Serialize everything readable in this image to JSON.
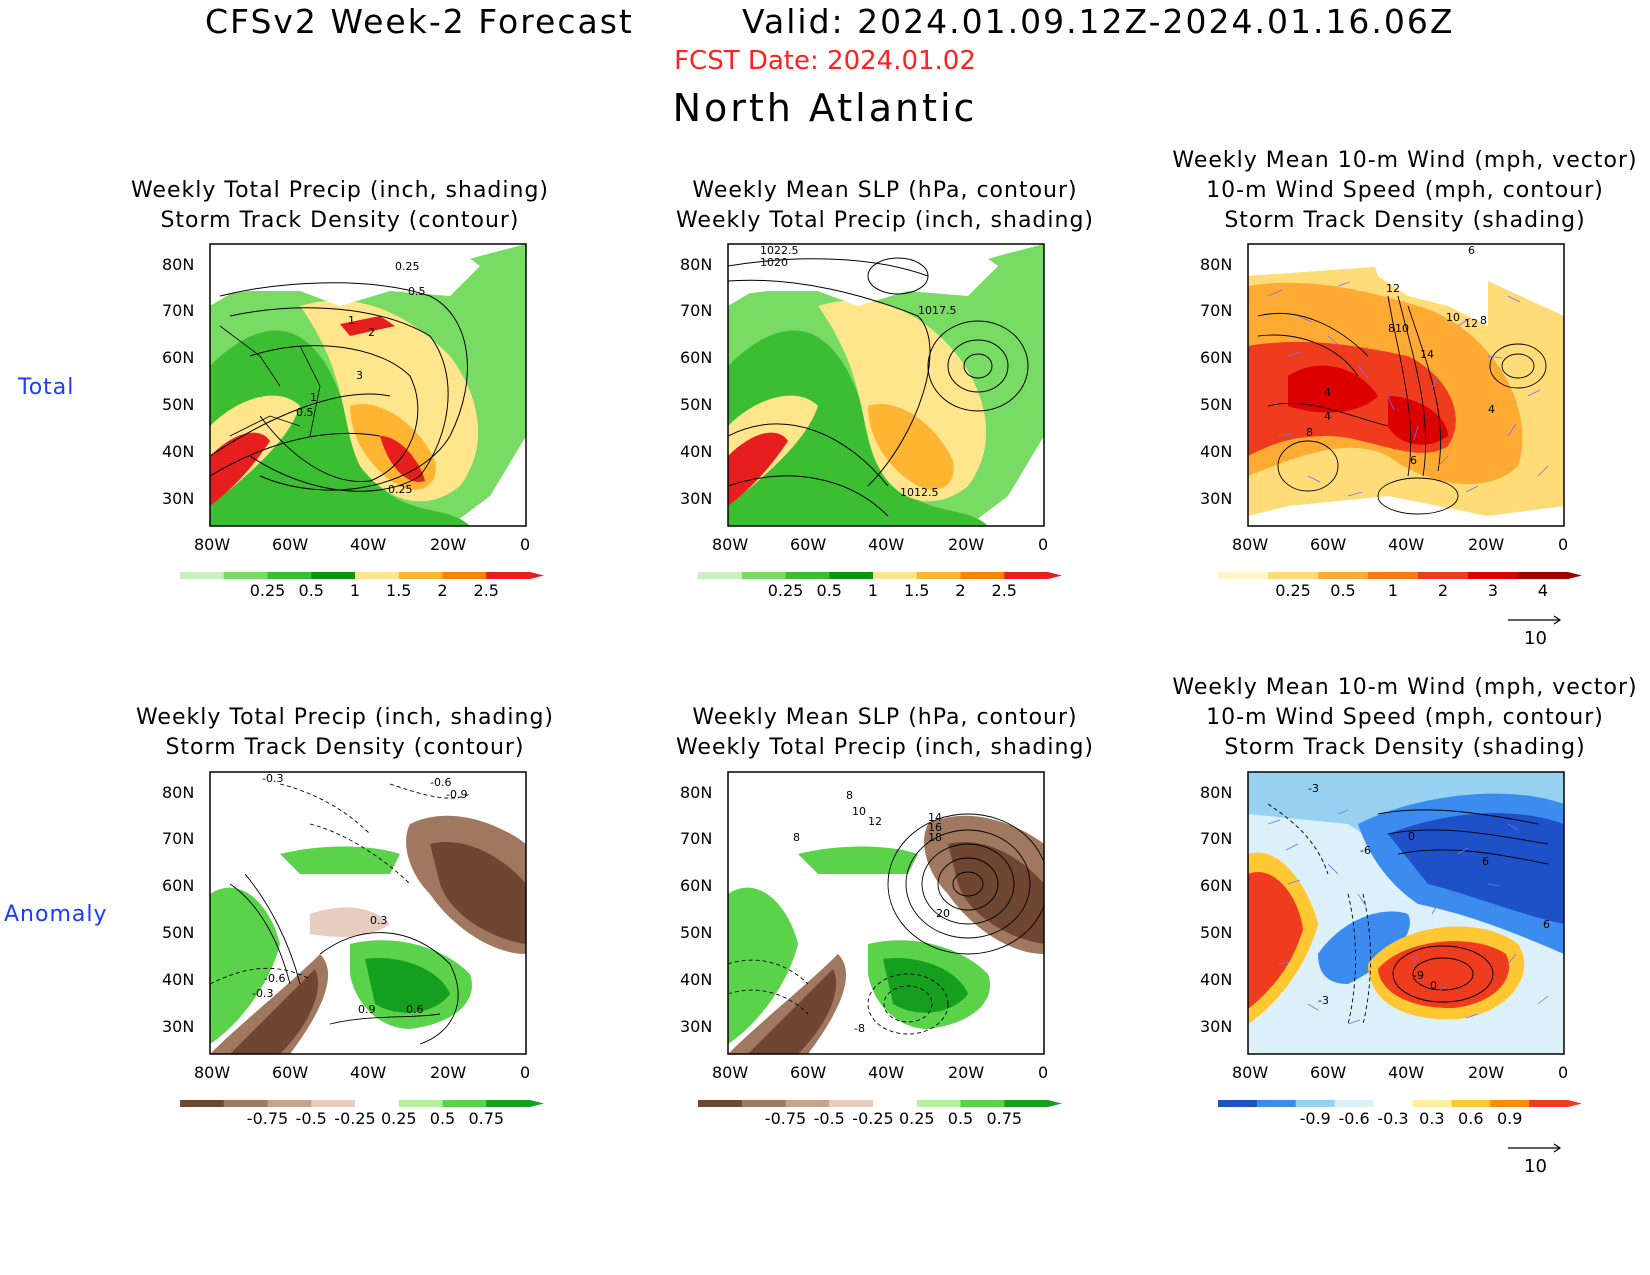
{
  "header": {
    "title": "CFSv2 Week-2 Forecast",
    "valid": "Valid: 2024.01.09.12Z-2024.01.16.06Z",
    "fcst_date": "FCST Date: 2024.01.02",
    "region": "North Atlantic"
  },
  "rows": {
    "total_label": "Total",
    "anomaly_label": "Anomaly"
  },
  "panels": {
    "precip_total": {
      "title_line1": "Weekly Total Precip (inch, shading)",
      "title_line2": "Storm Track Density (contour)",
      "contour_labels": [
        "0.25",
        "0.5",
        "1",
        "2",
        "3",
        "1",
        "0.5",
        "0.25"
      ]
    },
    "slp_total": {
      "title_line1": "Weekly Mean SLP (hPa, contour)",
      "title_line2": "Weekly Total Precip (inch, shading)",
      "contour_labels": [
        "1022.5",
        "1020",
        "1017.5",
        "1012.5"
      ]
    },
    "wind_total": {
      "title_line1": "Weekly Mean 10-m Wind (mph, vector)",
      "title_line2": "10-m Wind Speed (mph, contour)",
      "title_line3": "Storm Track Density (shading)",
      "contour_labels": [
        "6",
        "12",
        "10",
        "12",
        "8",
        "810",
        "14",
        "4",
        "4",
        "8",
        "6",
        "4"
      ],
      "vector_ref": "10"
    },
    "precip_anom": {
      "title_line1": "Weekly Total Precip (inch, shading)",
      "title_line2": "Storm Track Density (contour)",
      "contour_labels": [
        "-0.3",
        "-0.6",
        "-0.9",
        "0.3",
        "-0.6",
        "-0.3",
        "0.9",
        "0.6"
      ]
    },
    "slp_anom": {
      "title_line1": "Weekly Mean SLP (hPa, contour)",
      "title_line2": "Weekly Total Precip (inch, shading)",
      "contour_labels": [
        "8",
        "10",
        "12",
        "14",
        "16",
        "18",
        "20",
        "-8",
        "8"
      ]
    },
    "wind_anom": {
      "title_line1": "Weekly Mean 10-m Wind (mph, vector)",
      "title_line2": "10-m Wind Speed (mph, contour)",
      "title_line3": "Storm Track Density (shading)",
      "contour_labels": [
        "-3",
        "-6",
        "0",
        "6",
        "6",
        "-9",
        "0",
        "-3"
      ],
      "vector_ref": "10"
    }
  },
  "axes": {
    "lat_ticks": [
      "80N",
      "70N",
      "60N",
      "50N",
      "40N",
      "30N"
    ],
    "lon_ticks": [
      "80W",
      "60W",
      "40W",
      "20W",
      "0"
    ]
  },
  "colorbars": {
    "precip_total": {
      "labels": [
        "0.25",
        "0.5",
        "1",
        "1.5",
        "2",
        "2.5"
      ],
      "colors": [
        "#c8f0c0",
        "#78dc64",
        "#3cbe32",
        "#0a9614",
        "#ffe68c",
        "#ffb432",
        "#ff8200",
        "#e61e1e"
      ]
    },
    "storm_total": {
      "labels": [
        "0.25",
        "0.5",
        "1",
        "2",
        "3",
        "4"
      ],
      "colors": [
        "#fff5c8",
        "#ffdc78",
        "#ffaa32",
        "#ff7814",
        "#f03c1e",
        "#dc0000",
        "#a00000"
      ]
    },
    "precip_anom": {
      "labels": [
        "-0.75",
        "-0.5",
        "-0.25",
        "0.25",
        "0.5",
        "0.75"
      ],
      "colors": [
        "#6e4632",
        "#a07860",
        "#c8a08c",
        "#e6cdc0",
        "#ffffff",
        "#b4f0a0",
        "#5ad24a",
        "#14a01e"
      ]
    },
    "storm_anom": {
      "labels": [
        "-0.9",
        "-0.6",
        "-0.3",
        "0.3",
        "0.6",
        "0.9"
      ],
      "colors": [
        "#1e50c8",
        "#3c8cf0",
        "#96d2f0",
        "#dcf0fa",
        "#ffffff",
        "#fff0a0",
        "#ffc832",
        "#ff8c00",
        "#f03c1e"
      ]
    }
  }
}
